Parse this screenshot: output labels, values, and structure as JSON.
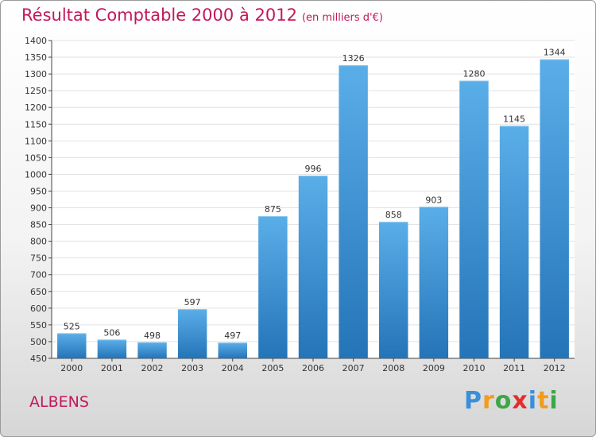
{
  "chart_data": {
    "type": "bar",
    "title": "Résultat Comptable 2000 à 2012",
    "subtitle": "(en milliers d'€)",
    "categories": [
      "2000",
      "2001",
      "2002",
      "2003",
      "2004",
      "2005",
      "2006",
      "2007",
      "2008",
      "2009",
      "2010",
      "2011",
      "2012"
    ],
    "values": [
      525,
      506,
      498,
      597,
      497,
      875,
      996,
      1326,
      858,
      903,
      1280,
      1145,
      1344
    ],
    "data_labels": [
      "525",
      "506",
      "498",
      "597",
      "497",
      "875",
      "996",
      "1326",
      "858",
      "903",
      "1280",
      "1145",
      "1344"
    ],
    "ylim": [
      450,
      1400
    ],
    "yticks": [
      450,
      500,
      550,
      600,
      650,
      700,
      750,
      800,
      850,
      900,
      950,
      1000,
      1050,
      1100,
      1150,
      1200,
      1250,
      1300,
      1350,
      1400
    ],
    "xlabel": "",
    "ylabel": "",
    "grid": true,
    "bar_color_top": "#5aaee8",
    "bar_color_bottom": "#2474b8"
  },
  "place_name": "ALBENS",
  "brand": {
    "name": "Proxiti",
    "letters": [
      "P",
      "r",
      "o",
      "x",
      "i",
      "t",
      "i"
    ],
    "letter_colors": [
      "#3a8fd8",
      "#f29b1d",
      "#3aa845",
      "#e22f2f",
      "#3a8fd8",
      "#f29b1d",
      "#3aa845"
    ]
  },
  "colors": {
    "title": "#c2185b",
    "grid": "#e1e1e1",
    "axis": "#444444"
  }
}
